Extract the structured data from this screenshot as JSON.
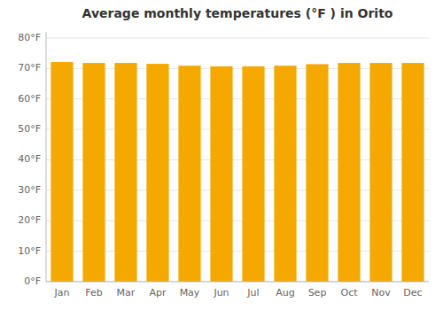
{
  "chart_data": {
    "type": "bar",
    "title": "Average monthly temperatures (°F ) in Orito",
    "categories": [
      "Jan",
      "Feb",
      "Mar",
      "Apr",
      "May",
      "Jun",
      "Jul",
      "Aug",
      "Sep",
      "Oct",
      "Nov",
      "Dec"
    ],
    "values": [
      72.1,
      71.8,
      71.8,
      71.5,
      70.9,
      70.7,
      70.7,
      70.9,
      71.4,
      71.8,
      71.8,
      71.8
    ],
    "color": "#F5A800",
    "ylim": [
      0,
      82
    ],
    "yticks": [
      {
        "value": 0,
        "label": "0°F"
      },
      {
        "value": 10,
        "label": "10°F"
      },
      {
        "value": 20,
        "label": "20°F"
      },
      {
        "value": 30,
        "label": "30°F"
      },
      {
        "value": 40,
        "label": "40°F"
      },
      {
        "value": 50,
        "label": "50°F"
      },
      {
        "value": 60,
        "label": "60°F"
      },
      {
        "value": 70,
        "label": "70°F"
      },
      {
        "value": 80,
        "label": "80°F"
      }
    ],
    "grid": true
  }
}
